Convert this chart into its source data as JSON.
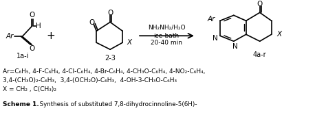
{
  "bg_color": "#ffffff",
  "text_color": "#000000",
  "figsize": [
    4.74,
    1.87
  ],
  "dpi": 100,
  "label_1a": "1a-i",
  "label_2": "2-3",
  "label_4a": "4a-r",
  "reagent1": "NH₂NH₂/H₂O",
  "reagent2": "ice-bath",
  "reagent3": "20-40 min",
  "line1": "Ar=C₆H₅, 4-F-C₆H₄, 4-Cl-C₆H₄, 4-Br-C₆H₄, 4-CH₃O-C₆H₄, 4-NO₂-C₆H₄,",
  "line2": "3,4-(CH₃O)₂-C₆H₃,  3,4-(OCH₂O)-C₆H₃,  4-OH-3-CH₃O-C₆H₃",
  "line3": "X = CH₂ , C(CH₃)₂",
  "scheme_bold": "Scheme 1.",
  "scheme_rest": "  Synthesis of substituted 7,8-dihydrocinnoline-5(6H)-"
}
